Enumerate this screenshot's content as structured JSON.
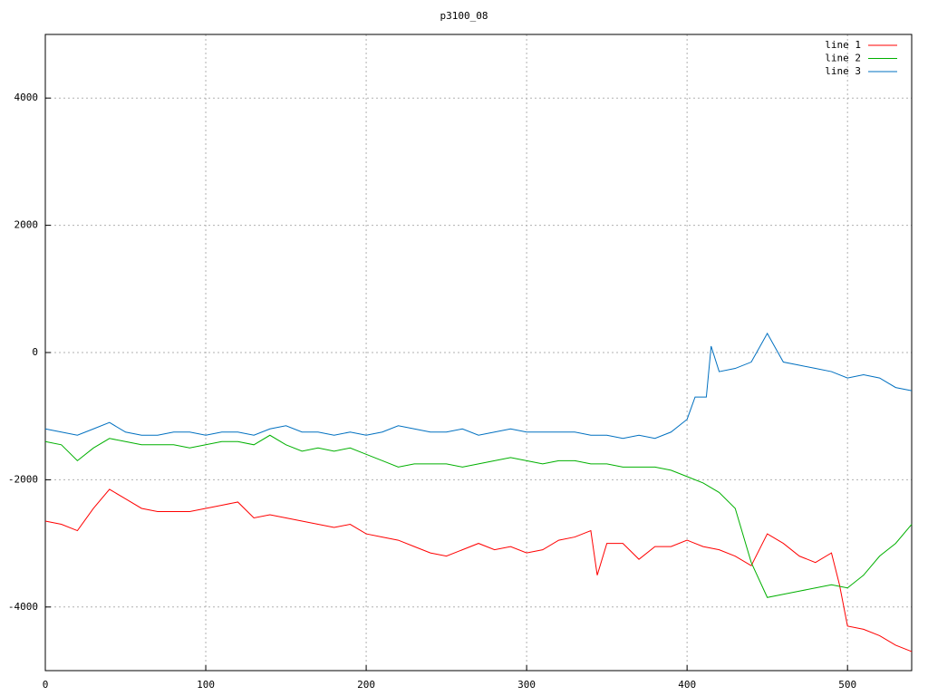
{
  "chart_data": {
    "type": "line",
    "title": "p3100_08",
    "xlim": [
      0,
      540
    ],
    "xticks": [
      0,
      100,
      200,
      300,
      400,
      500
    ],
    "ylim": [
      -5000,
      5000
    ],
    "yticks": [
      -4000,
      -2000,
      0,
      2000,
      4000
    ],
    "grid": true,
    "legend": "top-right",
    "series": [
      {
        "name": "line 1",
        "color": "#ff0000",
        "x": [
          0,
          10,
          20,
          30,
          40,
          50,
          60,
          70,
          80,
          90,
          100,
          110,
          120,
          130,
          140,
          150,
          160,
          170,
          180,
          190,
          200,
          210,
          220,
          230,
          240,
          250,
          260,
          270,
          280,
          290,
          300,
          310,
          320,
          330,
          340,
          344,
          350,
          360,
          370,
          380,
          390,
          400,
          410,
          420,
          430,
          440,
          450,
          460,
          470,
          480,
          490,
          495,
          500,
          510,
          520,
          530,
          540
        ],
        "values": [
          -2650,
          -2700,
          -2800,
          -2450,
          -2150,
          -2300,
          -2450,
          -2500,
          -2500,
          -2500,
          -2450,
          -2400,
          -2350,
          -2600,
          -2550,
          -2600,
          -2650,
          -2700,
          -2750,
          -2700,
          -2850,
          -2900,
          -2950,
          -3050,
          -3150,
          -3200,
          -3100,
          -3000,
          -3100,
          -3050,
          -3150,
          -3100,
          -2950,
          -2900,
          -2800,
          -3500,
          -3000,
          -3000,
          -3250,
          -3050,
          -3050,
          -2950,
          -3050,
          -3100,
          -3200,
          -3350,
          -2850,
          -3000,
          -3200,
          -3300,
          -3150,
          -3650,
          -4300,
          -4350,
          -4450,
          -4600,
          -4700
        ]
      },
      {
        "name": "line 2",
        "color": "#00b000",
        "x": [
          0,
          10,
          20,
          30,
          40,
          50,
          60,
          70,
          80,
          90,
          100,
          110,
          120,
          130,
          140,
          150,
          160,
          170,
          180,
          190,
          200,
          210,
          220,
          230,
          240,
          250,
          260,
          270,
          280,
          290,
          300,
          310,
          320,
          330,
          340,
          350,
          360,
          370,
          380,
          390,
          400,
          410,
          420,
          430,
          440,
          450,
          460,
          470,
          480,
          490,
          500,
          510,
          520,
          530,
          540
        ],
        "values": [
          -1400,
          -1450,
          -1700,
          -1500,
          -1350,
          -1400,
          -1450,
          -1450,
          -1450,
          -1500,
          -1450,
          -1400,
          -1400,
          -1450,
          -1300,
          -1450,
          -1550,
          -1500,
          -1550,
          -1500,
          -1600,
          -1700,
          -1800,
          -1750,
          -1750,
          -1750,
          -1800,
          -1750,
          -1700,
          -1650,
          -1700,
          -1750,
          -1700,
          -1700,
          -1750,
          -1750,
          -1800,
          -1800,
          -1800,
          -1850,
          -1950,
          -2050,
          -2200,
          -2450,
          -3300,
          -3850,
          -3800,
          -3750,
          -3700,
          -3650,
          -3700,
          -3500,
          -3200,
          -3000,
          -2700
        ]
      },
      {
        "name": "line 3",
        "color": "#0070c0",
        "x": [
          0,
          10,
          20,
          30,
          40,
          50,
          60,
          70,
          80,
          90,
          100,
          110,
          120,
          130,
          140,
          150,
          160,
          170,
          180,
          190,
          200,
          210,
          220,
          230,
          240,
          250,
          260,
          270,
          280,
          290,
          300,
          310,
          320,
          330,
          340,
          350,
          360,
          370,
          380,
          390,
          400,
          405,
          412,
          415,
          420,
          430,
          440,
          450,
          460,
          470,
          480,
          490,
          500,
          510,
          520,
          530,
          540
        ],
        "values": [
          -1200,
          -1250,
          -1300,
          -1200,
          -1100,
          -1250,
          -1300,
          -1300,
          -1250,
          -1250,
          -1300,
          -1250,
          -1250,
          -1300,
          -1200,
          -1150,
          -1250,
          -1250,
          -1300,
          -1250,
          -1300,
          -1250,
          -1150,
          -1200,
          -1250,
          -1250,
          -1200,
          -1300,
          -1250,
          -1200,
          -1250,
          -1250,
          -1250,
          -1250,
          -1300,
          -1300,
          -1350,
          -1300,
          -1350,
          -1250,
          -1050,
          -700,
          -700,
          100,
          -300,
          -250,
          -150,
          300,
          -150,
          -200,
          -250,
          -300,
          -400,
          -350,
          -400,
          -550,
          -600
        ]
      }
    ]
  }
}
